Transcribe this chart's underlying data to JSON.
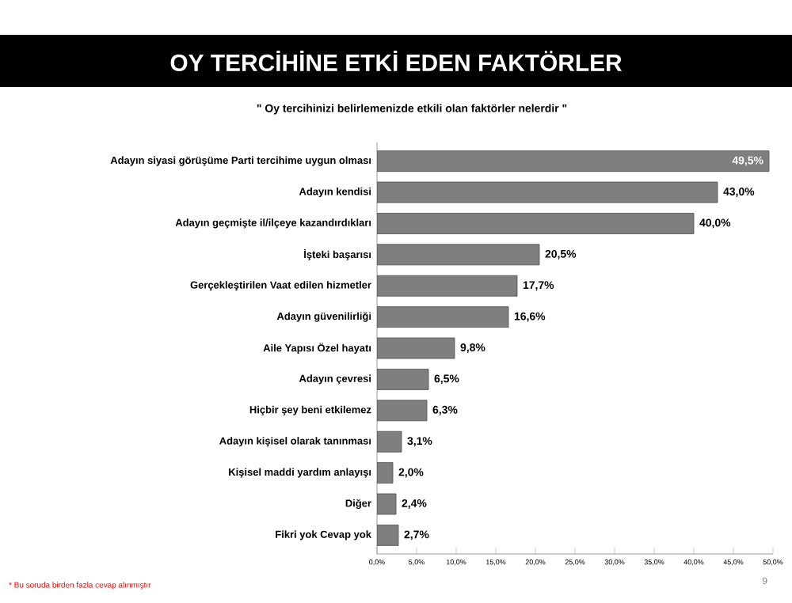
{
  "chart_data": {
    "type": "bar",
    "orientation": "horizontal",
    "title": "OY TERCİHİNE ETKİ EDEN FAKTÖRLER",
    "subtitle": "\" Oy tercihinizi belirlemenizde etkili olan faktörler nelerdir \"",
    "categories": [
      "Adayın siyasi görüşüme Parti tercihime uygun olması",
      "Adayın kendisi",
      "Adayın geçmişte il/ilçeye kazandırdıkları",
      "İşteki başarısı",
      "Gerçekleştirilen  Vaat edilen hizmetler",
      "Adayın güvenilirliği",
      "Aile Yapısı Özel hayatı",
      "Adayın çevresi",
      "Hiçbir şey beni etkilemez",
      "Adayın kişisel olarak tanınması",
      "Kişisel maddi yardım anlayışı",
      "Diğer",
      "Fikri yok Cevap yok"
    ],
    "values": [
      49.5,
      43.0,
      40.0,
      20.5,
      17.7,
      16.6,
      9.8,
      6.5,
      6.3,
      3.1,
      2.0,
      2.4,
      2.7
    ],
    "value_labels": [
      "49,5%",
      "43,0%",
      "40,0%",
      "20,5%",
      "17,7%",
      "16,6%",
      "9,8%",
      "6,5%",
      "6,3%",
      "3,1%",
      "2,0%",
      "2,4%",
      "2,7%"
    ],
    "color": "#7f7f7f",
    "xlim": [
      0,
      50
    ],
    "xticks": [
      {
        "value": 0,
        "label": "0,0%"
      },
      {
        "value": 5,
        "label": "5,0%"
      },
      {
        "value": 10,
        "label": "10,0%"
      },
      {
        "value": 15,
        "label": "15,0%"
      },
      {
        "value": 20,
        "label": "20,0%"
      },
      {
        "value": 25,
        "label": "25,0%"
      },
      {
        "value": 30,
        "label": "30,0%"
      },
      {
        "value": 35,
        "label": "35,0%"
      },
      {
        "value": 40,
        "label": "40,0%"
      },
      {
        "value": 45,
        "label": "45,0%"
      },
      {
        "value": 50,
        "label": "50,0%"
      }
    ],
    "grid": false,
    "annotations": [
      "* Bu soruda birden fazla cevap alınmıştır",
      "9"
    ]
  }
}
